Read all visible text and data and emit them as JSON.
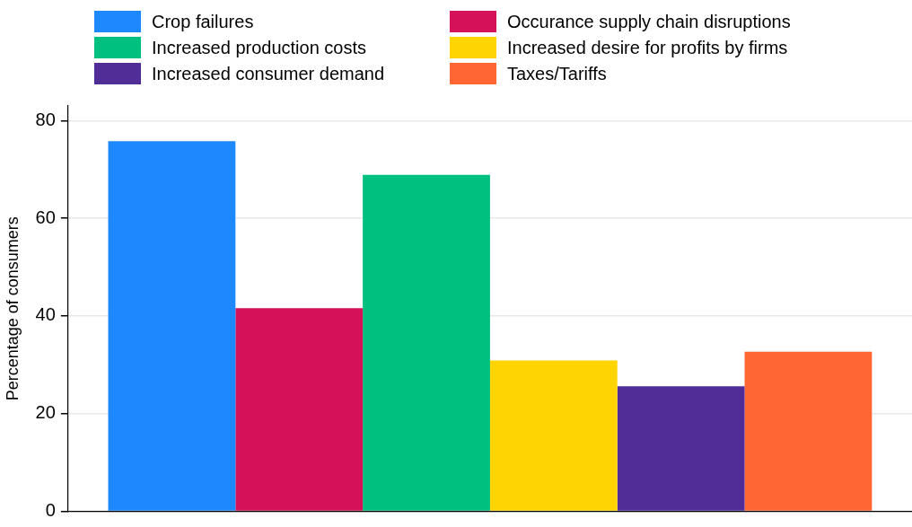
{
  "chart_data": {
    "type": "bar",
    "ylabel": "Percentage of consumers",
    "categories": [
      null
    ],
    "series": [
      {
        "name": "Crop failures",
        "color": "#1e88ff",
        "values": [
          75.8
        ]
      },
      {
        "name": "Occurance supply chain disruptions",
        "color": "#d41159",
        "values": [
          41.6
        ]
      },
      {
        "name": "Increased production costs",
        "color": "#00c07f",
        "values": [
          68.9
        ]
      },
      {
        "name": "Increased desire for profits by firms",
        "color": "#ffd400",
        "values": [
          30.9
        ]
      },
      {
        "name": "Increased consumer demand",
        "color": "#512d98",
        "values": [
          25.6
        ]
      },
      {
        "name": "Taxes/Tariffs",
        "color": "#ff6633",
        "values": [
          32.7
        ]
      }
    ],
    "ylim": [
      0,
      83
    ],
    "yticks": [
      0,
      20,
      40,
      60,
      80
    ],
    "grid": "y",
    "legend": "top"
  }
}
